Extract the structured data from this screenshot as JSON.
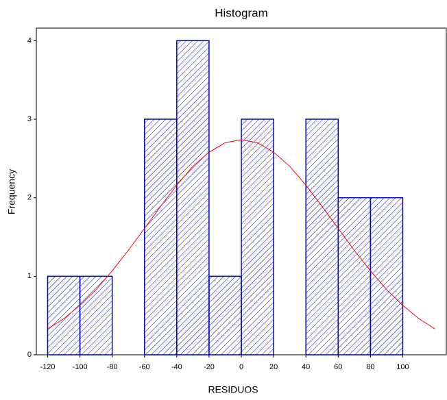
{
  "chart_data": {
    "type": "histogram",
    "title": "Histogram",
    "x_label": "RESIDUOS",
    "y_label": "Frequency",
    "bins": [
      -120,
      -100,
      -80,
      -60,
      -40,
      -20,
      0,
      20,
      40,
      60,
      80,
      100
    ],
    "counts": [
      1,
      1,
      0,
      3,
      4,
      1,
      3,
      0,
      3,
      2,
      2
    ],
    "color": "#0000cc",
    "curve": {
      "color": "#ff0000",
      "x": [
        -120,
        -110,
        -100,
        -90,
        -80,
        -70,
        -60,
        -50,
        -40,
        -30,
        -20,
        -10,
        0,
        10,
        20,
        30,
        40,
        50,
        60,
        70,
        80,
        90,
        100,
        110,
        120
      ],
      "values": [
        0.33,
        0.46,
        0.63,
        0.83,
        1.07,
        1.33,
        1.61,
        1.89,
        2.16,
        2.4,
        2.58,
        2.7,
        2.74,
        2.7,
        2.58,
        2.4,
        2.16,
        1.89,
        1.61,
        1.33,
        1.07,
        0.83,
        0.63,
        0.46,
        0.33
      ]
    },
    "xlim": [
      -127,
      127
    ],
    "ylim": [
      0,
      4.16
    ],
    "xticks": [
      -120,
      -100,
      -80,
      -60,
      -40,
      -20,
      0,
      20,
      40,
      60,
      80,
      100
    ],
    "yticks": [
      0,
      1,
      2,
      3,
      4
    ]
  }
}
